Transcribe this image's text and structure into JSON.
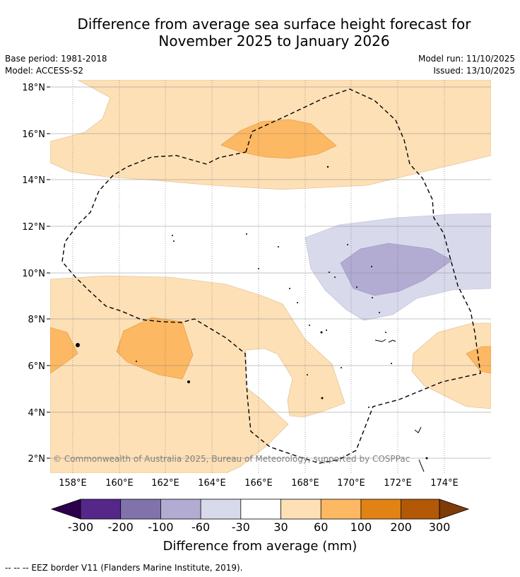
{
  "title_line1": "Difference from average sea surface height forecast for",
  "title_line2": "November 2025 to January 2026",
  "base_period": "Base period: 1981-2018",
  "model": "Model: ACCESS-S2",
  "model_run": "Model run: 11/10/2025",
  "issued": "Issued: 13/10/2025",
  "copyright": "© Commonwealth of Australia 2025, Bureau of Meteorology, supported by COSPPac",
  "lat_labels": [
    "18°N",
    "16°N",
    "14°N",
    "12°N",
    "10°N",
    "8°N",
    "6°N",
    "4°N",
    "2°N"
  ],
  "lon_labels": [
    "158°E",
    "160°E",
    "162°E",
    "164°E",
    "166°E",
    "168°E",
    "170°E",
    "172°E",
    "174°E"
  ],
  "colorbar": {
    "label": "Difference from average (mm)",
    "ticks": [
      "-300",
      "-200",
      "-100",
      "-60",
      "-30",
      "30",
      "60",
      "100",
      "200",
      "300"
    ],
    "colors": [
      "#2d004b",
      "#542788",
      "#8073ac",
      "#b2abd2",
      "#d8daeb",
      "#ffffff",
      "#fee0b6",
      "#fdb863",
      "#e08214",
      "#b35806",
      "#7f3b08"
    ]
  },
  "footer": "--  --  -- EEZ border V11 (Flanders Marine Institute, 2019)."
}
